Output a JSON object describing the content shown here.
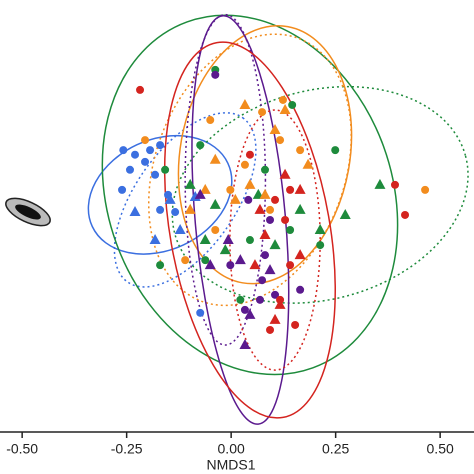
{
  "chart_data": {
    "type": "scatter",
    "xlabel": "NMDS1",
    "xlim": [
      -0.553,
      0.581
    ],
    "ylim": [
      -0.507,
      0.526
    ],
    "xticks": [
      {
        "value": -0.5,
        "label": "-0.50"
      },
      {
        "value": -0.25,
        "label": "-0.25"
      },
      {
        "value": 0,
        "label": "0.00"
      },
      {
        "value": 0.25,
        "label": "0.25"
      },
      {
        "value": 0.5,
        "label": "0.50"
      }
    ],
    "series": [
      {
        "color": "#3b6fe0",
        "marker": "circle",
        "x": [
          -0.258,
          -0.23,
          -0.194,
          -0.17,
          -0.206,
          -0.242,
          -0.261,
          -0.182,
          -0.134,
          -0.17,
          -0.151,
          -0.074
        ],
        "y": [
          0.167,
          0.156,
          0.167,
          0.179,
          0.139,
          0.12,
          0.072,
          0.108,
          0.019,
          0.024,
          0.06,
          -0.222
        ]
      },
      {
        "color": "#3b6fe0",
        "marker": "triangle",
        "x": [
          -0.23,
          -0.146,
          -0.122,
          -0.086,
          -0.182
        ],
        "y": [
          0.019,
          0.048,
          -0.024,
          0.055,
          -0.048
        ]
      },
      {
        "color": "#1e8b3c",
        "marker": "circle",
        "x": [
          -0.17,
          -0.062,
          0.022,
          0.045,
          0.141,
          0.213,
          0.249,
          0.081,
          -0.038,
          0.146,
          -0.074,
          -0.158
        ],
        "y": [
          -0.108,
          -0.096,
          -0.191,
          -0.048,
          -0.024,
          -0.06,
          0.167,
          0.12,
          0.359,
          0.275,
          0.179,
          0.12
        ]
      },
      {
        "color": "#1e8b3c",
        "marker": "triangle",
        "x": [
          -0.062,
          -0.014,
          0.105,
          0.165,
          0.213,
          0.273,
          0.356,
          -0.098,
          -0.038,
          0.065
        ],
        "y": [
          -0.048,
          -0.072,
          -0.06,
          0.024,
          -0.024,
          0.012,
          0.084,
          0.084,
          0.036,
          0.06
        ]
      },
      {
        "color": "#f28c1e",
        "marker": "circle",
        "x": [
          0.074,
          0.033,
          -0.002,
          -0.206,
          -0.11,
          -0.038,
          0.117,
          0.165,
          0.093,
          0.464,
          0.124,
          -0.05
        ],
        "y": [
          0.258,
          0.132,
          0.072,
          0.191,
          -0.096,
          -0.024,
          0.191,
          0.167,
          0.024,
          0.072,
          0.287,
          0.239
        ]
      },
      {
        "color": "#f28c1e",
        "marker": "triangle",
        "x": [
          0.033,
          0.129,
          0.105,
          0.081,
          -0.098,
          -0.062,
          -0.038,
          0.045,
          0.184,
          0.01
        ],
        "y": [
          0.275,
          0.263,
          0.215,
          0.06,
          0.024,
          0.072,
          0.144,
          0.084,
          0.132,
          0.048
        ]
      },
      {
        "color": "#5b1a8e",
        "marker": "circle",
        "x": [
          -0.038,
          0.041,
          0.093,
          0.081,
          0.074,
          0.069,
          0.033,
          0.105,
          0.165,
          -0.002
        ],
        "y": [
          0.347,
          0.048,
          0.0,
          -0.084,
          -0.144,
          -0.191,
          -0.215,
          -0.179,
          -0.167,
          -0.108
        ]
      },
      {
        "color": "#5b1a8e",
        "marker": "triangle",
        "x": [
          -0.074,
          0.022,
          0.045,
          0.033,
          0.093,
          -0.007,
          -0.05
        ],
        "y": [
          0.06,
          -0.096,
          -0.227,
          -0.299,
          -0.12,
          -0.048,
          -0.108
        ]
      },
      {
        "color": "#d4241f",
        "marker": "circle",
        "x": [
          -0.218,
          0.045,
          0.105,
          0.141,
          0.141,
          0.117,
          0.153,
          0.416,
          0.093,
          0.392,
          0.129
        ],
        "y": [
          0.311,
          0.156,
          0.048,
          0.072,
          -0.108,
          -0.191,
          -0.251,
          0.012,
          -0.263,
          0.084,
          0.0
        ]
      },
      {
        "color": "#d4241f",
        "marker": "triangle",
        "x": [
          0.057,
          0.081,
          0.105,
          0.129,
          0.165,
          0.117,
          0.165,
          0.069
        ],
        "y": [
          -0.108,
          -0.036,
          -0.239,
          0.108,
          -0.084,
          -0.203,
          0.072,
          0.024
        ]
      }
    ],
    "ellipses": [
      {
        "color": "#3b6fe0",
        "dashed": false,
        "cx": -0.17,
        "cy": 0.06,
        "rx": 0.179,
        "ry": 0.132,
        "angle": -25
      },
      {
        "color": "#3b6fe0",
        "dashed": true,
        "cx": -0.11,
        "cy": 0.048,
        "rx": 0.24,
        "ry": 0.12,
        "angle": -55
      },
      {
        "color": "#1e8b3c",
        "dashed": false,
        "cx": 0.045,
        "cy": 0.06,
        "rx": 0.34,
        "ry": 0.44,
        "angle": -20
      },
      {
        "color": "#1e8b3c",
        "dashed": true,
        "cx": 0.213,
        "cy": 0.06,
        "rx": 0.36,
        "ry": 0.25,
        "angle": -15
      },
      {
        "color": "#f28c1e",
        "dashed": false,
        "cx": 0.081,
        "cy": 0.156,
        "rx": 0.203,
        "ry": 0.311,
        "angle": 10
      },
      {
        "color": "#f28c1e",
        "dashed": true,
        "cx": 0.045,
        "cy": 0.12,
        "rx": 0.227,
        "ry": 0.335,
        "angle": 20
      },
      {
        "color": "#5b1a8e",
        "dashed": false,
        "cx": 0.022,
        "cy": 0.0,
        "rx": 0.108,
        "ry": 0.49,
        "angle": -5
      },
      {
        "color": "#5b1a8e",
        "dashed": true,
        "cx": -0.014,
        "cy": 0.096,
        "rx": 0.096,
        "ry": 0.395,
        "angle": 0
      },
      {
        "color": "#d4241f",
        "dashed": false,
        "cx": 0.045,
        "cy": -0.024,
        "rx": 0.191,
        "ry": 0.455,
        "angle": -10
      },
      {
        "color": "#d4241f",
        "dashed": true,
        "cx": 0.105,
        "cy": -0.048,
        "rx": 0.108,
        "ry": 0.311,
        "angle": 0
      }
    ]
  }
}
